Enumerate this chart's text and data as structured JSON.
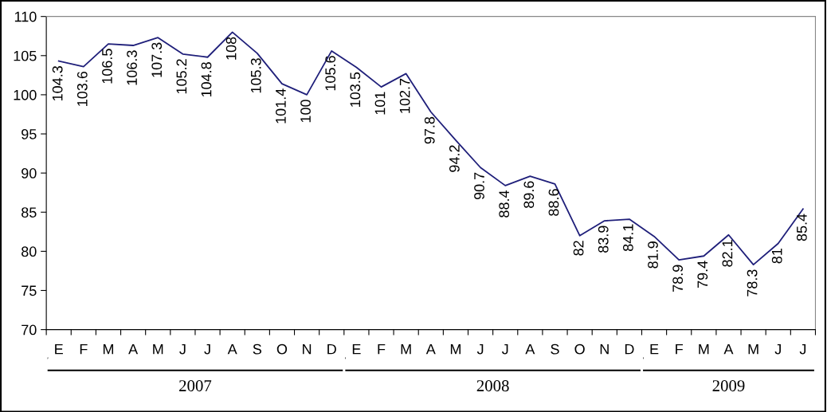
{
  "chart_data": {
    "type": "line",
    "categories": [
      "E",
      "F",
      "M",
      "A",
      "M",
      "J",
      "J",
      "A",
      "S",
      "O",
      "N",
      "D",
      "E",
      "F",
      "M",
      "A",
      "M",
      "J",
      "J",
      "A",
      "S",
      "O",
      "N",
      "D",
      "E",
      "F",
      "M",
      "A",
      "M",
      "J",
      "J"
    ],
    "series": [
      {
        "color": "#1f1f7a",
        "values": [
          104.3,
          103.6,
          106.5,
          106.3,
          107.3,
          105.2,
          104.8,
          108,
          105.3,
          101.4,
          100,
          105.6,
          103.5,
          101,
          102.7,
          97.8,
          94.2,
          90.7,
          88.4,
          89.6,
          88.6,
          82,
          83.9,
          84.1,
          81.9,
          78.9,
          79.4,
          82.1,
          78.3,
          81,
          85.4
        ]
      }
    ],
    "annotations": [
      "2007",
      "2008",
      "2009"
    ],
    "ylim": [
      70,
      110
    ],
    "yticks": [
      70,
      75,
      80,
      85,
      90,
      95,
      100,
      105,
      110
    ],
    "data_labels": true,
    "grid": false,
    "legend": false,
    "marker": "none",
    "line_style": "solid"
  }
}
